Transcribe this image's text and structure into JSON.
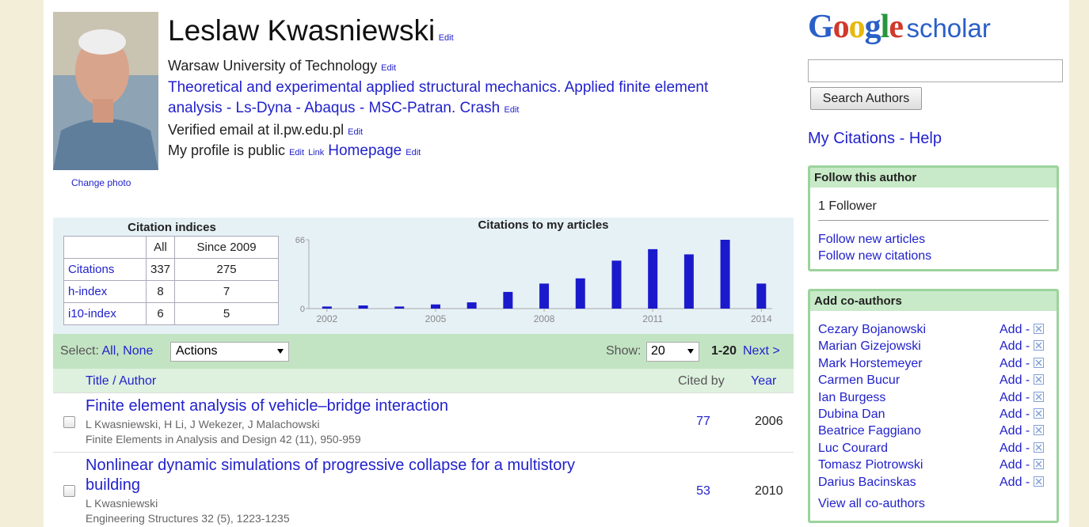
{
  "profile": {
    "name": "Leslaw Kwasniewski",
    "edit": "Edit",
    "affiliation": "Warsaw University of Technology",
    "interests": "Theoretical and experimental applied structural mechanics. Applied finite element analysis - Ls-Dyna - Abaqus - MSC-Patran. Crash",
    "email": "Verified email at il.pw.edu.pl",
    "public": "My profile is public",
    "link": "Link",
    "homepage": "Homepage",
    "change_photo": "Change photo"
  },
  "citation_indices": {
    "title": "Citation indices",
    "headers": [
      "All",
      "Since 2009"
    ],
    "rows": [
      [
        "Citations",
        337,
        275
      ],
      [
        "h-index",
        8,
        7
      ],
      [
        "i10-index",
        6,
        5
      ]
    ]
  },
  "chart_data": {
    "type": "bar",
    "title": "Citations to my articles",
    "x": [
      2002,
      2003,
      2004,
      2005,
      2006,
      2007,
      2008,
      2009,
      2010,
      2011,
      2012,
      2013,
      2014
    ],
    "values": [
      2,
      3,
      2,
      4,
      6,
      16,
      24,
      29,
      46,
      57,
      52,
      66,
      24
    ],
    "color": "#1a1acc",
    "xlim": [
      2001.5,
      2014.3
    ],
    "xticks": [
      2002,
      2005,
      2008,
      2011,
      2014
    ],
    "ylim": [
      0,
      66
    ],
    "yticks": [
      0,
      66
    ]
  },
  "toolbar": {
    "select": "Select:",
    "all": "All,",
    "none": "None",
    "actions": "Actions",
    "show": "Show:",
    "show_value": "20",
    "range": "1-20",
    "next": "Next >"
  },
  "table": {
    "headers": [
      "Title / Author",
      "Cited by",
      "Year"
    ],
    "rows": [
      {
        "title": "Finite element analysis of vehicle–bridge interaction",
        "authors": "L Kwasniewski, H Li, J Wekezer, J Malachowski",
        "venue": "Finite Elements in Analysis and Design 42 (11), 950-959",
        "cited_by": 77,
        "year": 2006
      },
      {
        "title": "Nonlinear dynamic simulations of progressive collapse for a multistory building",
        "authors": "L Kwasniewski",
        "venue": "Engineering Structures 32 (5), 1223-1235",
        "cited_by": 53,
        "year": 2010
      }
    ]
  },
  "sidebar": {
    "logo_google": "Google",
    "logo_scholar": "scholar",
    "search_button": "Search Authors",
    "my_citations": "My Citations",
    "separator": "-",
    "help": "Help",
    "follow": {
      "title": "Follow this author",
      "followers": "1 Follower",
      "links": [
        "Follow new articles",
        "Follow new citations"
      ]
    },
    "coauthors": {
      "title": "Add co-authors",
      "names": [
        "Cezary Bojanowski",
        "Marian Gizejowski",
        "Mark Horstemeyer",
        "Carmen Bucur",
        "Ian Burgess",
        "Dubina Dan",
        "Beatrice Faggiano",
        "Luc Courard",
        "Tomasz Piotrowski",
        "Darius Bacinskas"
      ],
      "add": "Add",
      "view_all": "View all co-authors"
    }
  }
}
